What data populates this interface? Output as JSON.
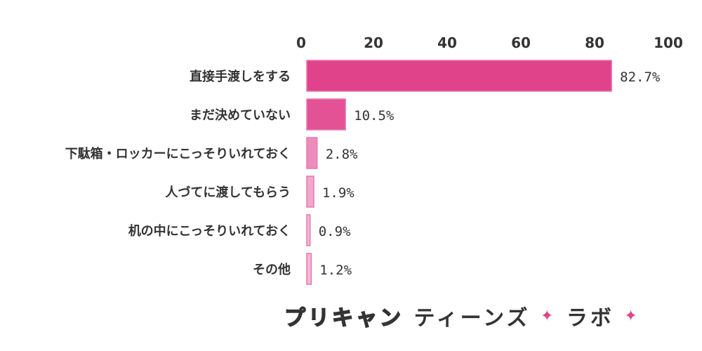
{
  "chart_data": {
    "type": "bar",
    "orientation": "horizontal",
    "categories": [
      "直接手渡しをする",
      "まだ決めていない",
      "下駄箱・ロッカーにこっそりいれておく",
      "人づてに渡してもらう",
      "机の中にこっそりいれておく",
      "その他"
    ],
    "values": [
      82.7,
      10.5,
      2.8,
      1.9,
      0.9,
      1.2
    ],
    "value_labels": [
      "82.7%",
      "10.5%",
      "2.8%",
      "1.9%",
      "0.9%",
      "1.2%"
    ],
    "xlim": [
      0,
      100
    ],
    "xticks": [
      "0",
      "20",
      "40",
      "60",
      "80",
      "100"
    ],
    "axis_position": "top",
    "grid": false,
    "colors": [
      "#e0438a",
      "#e45296",
      "#ec8cba",
      "#f1a7cb",
      "#f4b8d6",
      "#f4b8d6"
    ],
    "bar_stroke": "#e679ae"
  },
  "logo": {
    "part1": "プリキャン",
    "part2": "ティーンズ",
    "star": "✦",
    "part3": "ラボ"
  }
}
